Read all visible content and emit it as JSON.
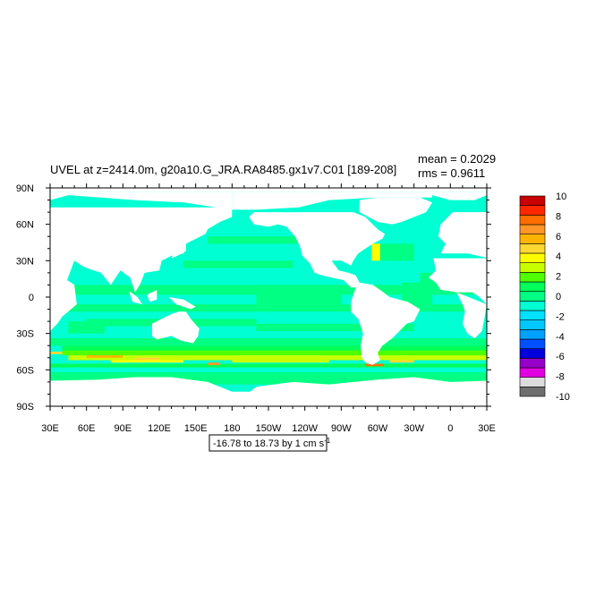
{
  "chart_data": {
    "type": "heatmap",
    "title": "UVEL at z=2414.0m, g20a10.G_JRA.RA8485.gx1v7.C01 [189-208]",
    "stats": {
      "mean": "mean = 0.2029",
      "rms": "rms = 0.9611"
    },
    "footer_label": "-16.78 to 18.73 by 1 cm s",
    "footer_unit_exponent": "-1",
    "x_tick_labels": [
      "30E",
      "60E",
      "90E",
      "120E",
      "150E",
      "180",
      "150W",
      "120W",
      "90W",
      "60W",
      "30W",
      "0",
      "30E"
    ],
    "y_tick_labels": [
      "90N",
      "60N",
      "30N",
      "0",
      "30S",
      "60S",
      "90S"
    ],
    "x_range_deg_east": [
      30,
      390
    ],
    "y_range_deg_north": [
      -90,
      90
    ],
    "colorbar": {
      "levels": [
        -10,
        -9,
        -8,
        -7,
        -6,
        -5,
        -4,
        -3,
        -2,
        -1,
        0,
        1,
        2,
        3,
        4,
        5,
        6,
        7,
        8,
        9,
        10
      ],
      "labels": [
        "10",
        "8",
        "6",
        "4",
        "2",
        "0",
        "-2",
        "-4",
        "-6",
        "-8",
        "-10"
      ],
      "colors_bottom_to_top": [
        "#6e6e6e",
        "#dcdcdc",
        "#e100e1",
        "#9600c8",
        "#0000dc",
        "#0050ff",
        "#00a0ff",
        "#00c8ff",
        "#00e1ff",
        "#00ffd2",
        "#00ff82",
        "#00ff5a",
        "#50ff00",
        "#c8ff00",
        "#ffff00",
        "#ffd732",
        "#ffb400",
        "#ff9628",
        "#ff6e00",
        "#ff2800",
        "#c80000"
      ]
    },
    "field_description_classes": {
      "ocean_dominant": "-1 to 0 (cyan) and 0 to 1 (green)",
      "southern_ocean_band": "2 to 8 (yellow to red), 50S-60S"
    }
  }
}
